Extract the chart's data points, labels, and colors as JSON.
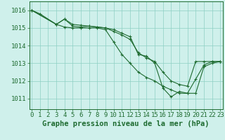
{
  "background_color": "#cff0eb",
  "grid_color": "#8ecfc4",
  "line_color": "#1e6b30",
  "xlabel": "Graphe pression niveau de la mer (hPa)",
  "xlabel_fontsize": 7.5,
  "tick_fontsize": 6.5,
  "yticks": [
    1011,
    1012,
    1013,
    1014,
    1015,
    1016
  ],
  "xticks": [
    0,
    1,
    2,
    3,
    4,
    5,
    6,
    7,
    8,
    9,
    10,
    11,
    12,
    13,
    14,
    15,
    16,
    17,
    18,
    19,
    20,
    21,
    22,
    23
  ],
  "xlim": [
    -0.3,
    23.3
  ],
  "ylim": [
    1010.4,
    1016.5
  ],
  "line1_x": [
    0,
    1,
    3,
    4,
    5,
    6,
    7,
    8,
    9,
    10,
    11,
    12,
    13,
    14,
    15,
    16,
    17,
    18,
    19,
    20,
    21,
    22,
    23
  ],
  "line1_y": [
    1016.0,
    1015.8,
    1015.2,
    1015.5,
    1015.1,
    1015.05,
    1015.1,
    1015.05,
    1015.0,
    1014.9,
    1014.7,
    1014.5,
    1013.5,
    1013.4,
    1013.0,
    1011.6,
    1011.1,
    1011.4,
    1011.3,
    1011.3,
    1012.8,
    1013.0,
    1013.1
  ],
  "line2_x": [
    0,
    3,
    4,
    5,
    6,
    7,
    8,
    9,
    10,
    11,
    12,
    13,
    14,
    15,
    16,
    17,
    18,
    19,
    20,
    21,
    22,
    23
  ],
  "line2_y": [
    1016.0,
    1015.2,
    1015.5,
    1015.2,
    1015.15,
    1015.1,
    1015.05,
    1015.0,
    1014.8,
    1014.6,
    1014.35,
    1013.6,
    1013.3,
    1013.1,
    1012.5,
    1012.0,
    1011.8,
    1011.7,
    1013.1,
    1013.1,
    1013.1,
    1013.1
  ],
  "line3_x": [
    0,
    3,
    4,
    5,
    6,
    7,
    8,
    9,
    10,
    11,
    12,
    13,
    14,
    15,
    16,
    17,
    18,
    19,
    20,
    21,
    22,
    23
  ],
  "line3_y": [
    1016.0,
    1015.2,
    1015.05,
    1015.0,
    1015.0,
    1015.0,
    1015.0,
    1014.9,
    1014.2,
    1013.5,
    1013.0,
    1012.5,
    1012.2,
    1012.0,
    1011.7,
    1011.5,
    1011.3,
    1011.3,
    1012.1,
    1012.9,
    1013.1,
    1013.1
  ]
}
